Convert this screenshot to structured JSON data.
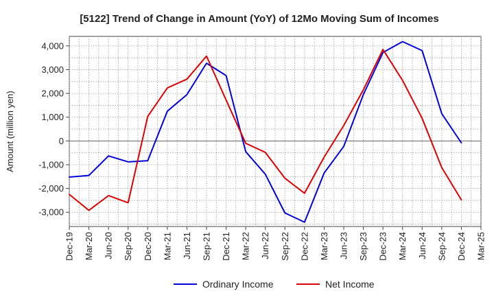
{
  "chart_data": {
    "type": "line",
    "title": "[5122]  Trend of Change in Amount (YoY) of 12Mo Moving Sum of Incomes",
    "xlabel": "",
    "ylabel": "Amount (million yen)",
    "ylim": [
      -3600,
      4400
    ],
    "yticks": [
      -3000,
      -2000,
      -1000,
      0,
      1000,
      2000,
      3000,
      4000
    ],
    "ytick_labels": [
      "-3,000",
      "-2,000",
      "-1,000",
      "0",
      "1,000",
      "2,000",
      "3,000",
      "4,000"
    ],
    "categories": [
      "Dec-19",
      "Mar-20",
      "Jun-20",
      "Sep-20",
      "Dec-20",
      "Mar-21",
      "Jun-21",
      "Sep-21",
      "Dec-21",
      "Mar-22",
      "Jun-22",
      "Sep-22",
      "Dec-22",
      "Mar-23",
      "Jun-23",
      "Sep-23",
      "Dec-23",
      "Mar-24",
      "Jun-24",
      "Sep-24",
      "Dec-24",
      "Mar-25"
    ],
    "grid": true,
    "legend_position": "bottom",
    "series": [
      {
        "name": "Ordinary Income",
        "color": "#0000dd",
        "values": [
          -1520,
          -1450,
          -630,
          -880,
          -830,
          1250,
          1950,
          3270,
          2750,
          -450,
          -1400,
          -3030,
          -3420,
          -1350,
          -230,
          1950,
          3720,
          4180,
          3800,
          1150,
          -80,
          null
        ]
      },
      {
        "name": "Net Income",
        "color": "#dd0000",
        "values": [
          -2250,
          -2920,
          -2300,
          -2600,
          1030,
          2230,
          2600,
          3570,
          1720,
          -100,
          -480,
          -1570,
          -2200,
          -680,
          650,
          2150,
          3850,
          2550,
          950,
          -1120,
          -2480,
          null
        ]
      }
    ]
  }
}
